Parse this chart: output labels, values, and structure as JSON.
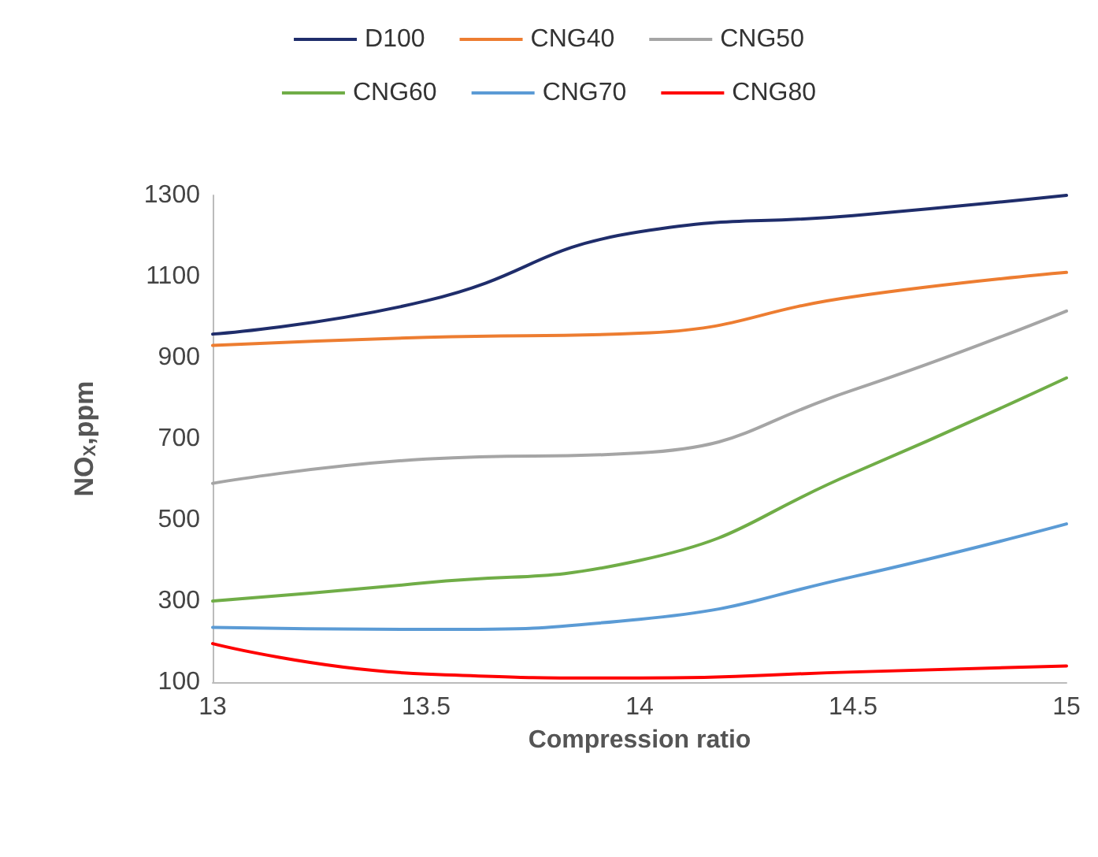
{
  "chart_data": {
    "type": "line",
    "xlabel": "Compression ratio",
    "ylabel": "NO$_{X}$,ppm",
    "x": [
      13,
      13.5,
      14,
      14.5,
      15
    ],
    "series": [
      {
        "name": "D100",
        "color": "#1f2d6b",
        "values": [
          958,
          1040,
          1210,
          1250,
          1300
        ]
      },
      {
        "name": "CNG40",
        "color": "#ed7d31",
        "values": [
          930,
          950,
          960,
          1050,
          1110
        ]
      },
      {
        "name": "CNG50",
        "color": "#a5a5a5",
        "values": [
          590,
          650,
          665,
          820,
          1015
        ]
      },
      {
        "name": "CNG60",
        "color": "#70ad47",
        "values": [
          300,
          345,
          400,
          615,
          850
        ]
      },
      {
        "name": "CNG70",
        "color": "#5b9bd5",
        "values": [
          235,
          230,
          255,
          360,
          490
        ]
      },
      {
        "name": "CNG80",
        "color": "#ff0000",
        "values": [
          195,
          120,
          110,
          125,
          140
        ]
      }
    ],
    "xlim": [
      13,
      15
    ],
    "xticks": [
      13,
      13.5,
      14,
      14.5,
      15
    ],
    "ylim": [
      100,
      1300
    ],
    "yticks": [
      100,
      300,
      500,
      700,
      900,
      1100,
      1300
    ],
    "grid": false,
    "legend": "top",
    "marker": "none",
    "line_style": "solid"
  }
}
